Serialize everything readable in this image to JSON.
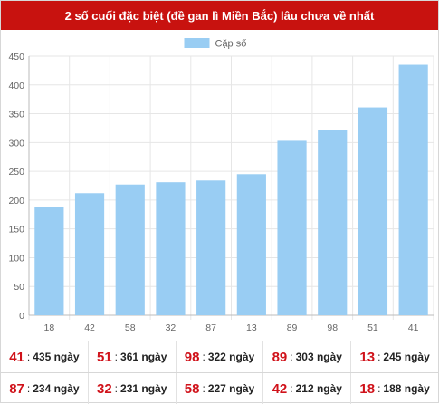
{
  "title": "2 số cuối đặc biệt (đề gan lì Miền Bắc) lâu chưa về nhất",
  "colors": {
    "title_bg": "#c8120f",
    "bar": "#99cdf3",
    "highlight": "#d0121a",
    "grid": "#e6e6e6",
    "axis_text": "#666666"
  },
  "chart_data": {
    "type": "bar",
    "categories": [
      "18",
      "42",
      "58",
      "32",
      "87",
      "13",
      "89",
      "98",
      "51",
      "41"
    ],
    "series": [
      {
        "name": "Cặp số",
        "values": [
          188,
          212,
          227,
          231,
          234,
          245,
          303,
          322,
          361,
          435
        ]
      }
    ],
    "ylim": [
      0,
      450
    ],
    "yticks": [
      0,
      50,
      100,
      150,
      200,
      250,
      300,
      350,
      400,
      450
    ],
    "legend": "top",
    "grid": true
  },
  "stats": {
    "separator": ":",
    "rows": [
      [
        {
          "num": "41",
          "days": "435 ngày"
        },
        {
          "num": "51",
          "days": "361 ngày"
        },
        {
          "num": "98",
          "days": "322 ngày"
        },
        {
          "num": "89",
          "days": "303 ngày"
        },
        {
          "num": "13",
          "days": "245 ngày"
        }
      ],
      [
        {
          "num": "87",
          "days": "234 ngày"
        },
        {
          "num": "32",
          "days": "231 ngày"
        },
        {
          "num": "58",
          "days": "227 ngày"
        },
        {
          "num": "42",
          "days": "212 ngày"
        },
        {
          "num": "18",
          "days": "188 ngày"
        }
      ]
    ]
  }
}
